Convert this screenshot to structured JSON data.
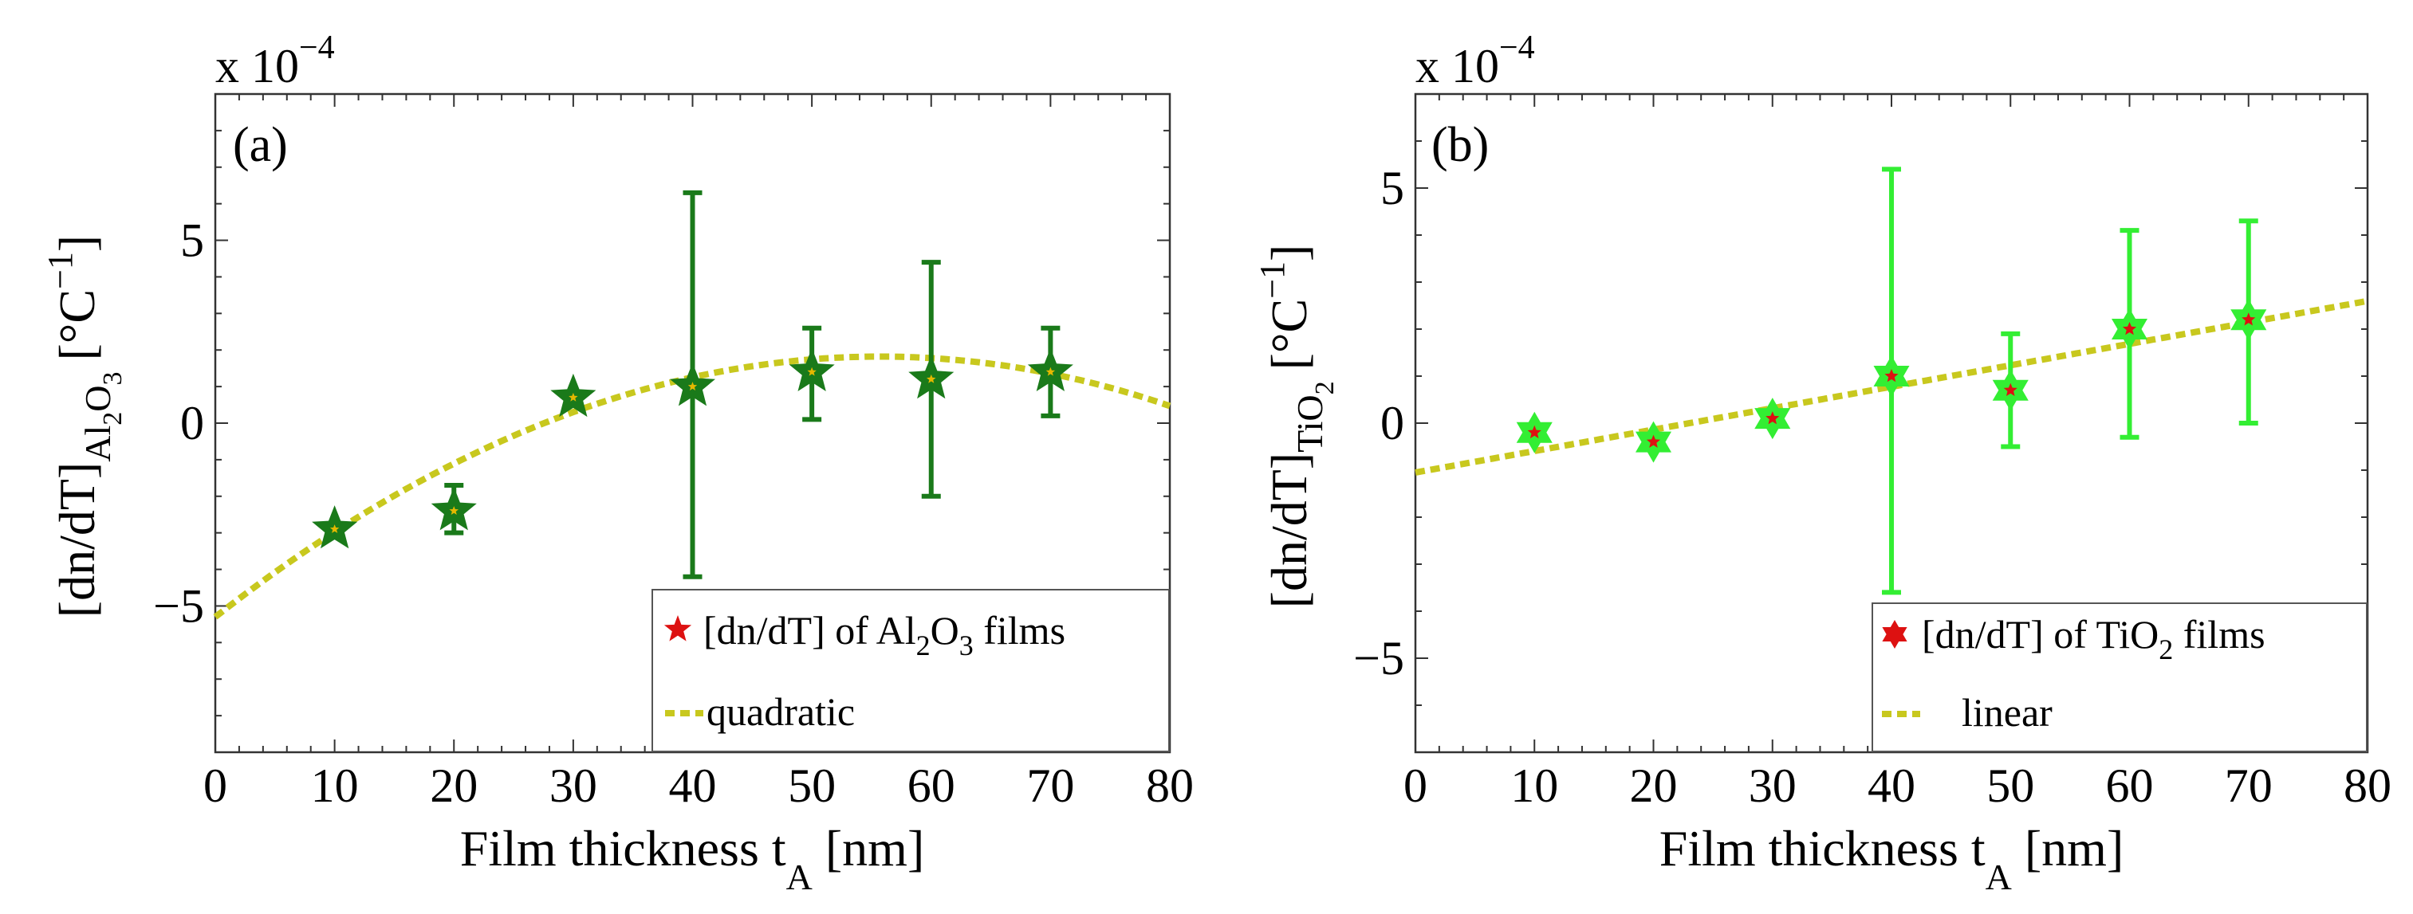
{
  "chart_data": [
    {
      "panel": "(a)",
      "type": "scatter",
      "exponent_label": "x 10",
      "exponent_power": "−4",
      "ylabel": {
        "main": "[dn/dT]",
        "sub1": "Al",
        "sub2": "2",
        "sub3": "O",
        "sub4": "3",
        "unit": "[°C",
        "unit_sup": "−1",
        "unit_close": "]"
      },
      "xlabel": {
        "main": "Film thickness t",
        "sub": "A",
        "unit": " [nm]"
      },
      "xlim": [
        0,
        80
      ],
      "ylim": [
        -9,
        9
      ],
      "xticks": [
        0,
        10,
        20,
        30,
        40,
        50,
        60,
        70,
        80
      ],
      "yticks": [
        -5,
        0,
        5
      ],
      "ytick_labels": [
        "−5",
        "0",
        "5"
      ],
      "marker_color": "#1a7a1a",
      "marker_inner_color": "#e5b800",
      "errorbar_color": "#1a7a1a",
      "fit_color": "#c8c81e",
      "series": [
        {
          "name": "[dn/dT] of Al2O3 films",
          "legend_parts": {
            "pre": "[dn/dT] of Al",
            "s1": "2",
            "mid": "O",
            "s2": "3",
            "post": " films"
          },
          "x": [
            10,
            20,
            30,
            40,
            50,
            60,
            70
          ],
          "y": [
            -2.9,
            -2.4,
            0.7,
            1.0,
            1.4,
            1.2,
            1.4
          ],
          "err_lo": [
            -2.9,
            -3.0,
            0.7,
            -4.2,
            0.1,
            -2.0,
            0.2
          ],
          "err_hi": [
            -2.9,
            -1.7,
            0.7,
            6.3,
            2.6,
            4.4,
            2.6
          ]
        }
      ],
      "fit": {
        "name": "quadratic",
        "model": "quadratic",
        "a": -5.3,
        "b": 0.2555,
        "c": -0.002292
      }
    },
    {
      "panel": "(b)",
      "type": "scatter",
      "exponent_label": "x 10",
      "exponent_power": "−4",
      "ylabel": {
        "main": "[dn/dT]",
        "sub1": "TiO",
        "sub2": "2",
        "unit": "[°C",
        "unit_sup": "−1",
        "unit_close": "]"
      },
      "xlabel": {
        "main": "Film thickness t",
        "sub": "A",
        "unit": " [nm]"
      },
      "xlim": [
        0,
        80
      ],
      "ylim": [
        -7,
        7
      ],
      "xticks": [
        0,
        10,
        20,
        30,
        40,
        50,
        60,
        70,
        80
      ],
      "yticks": [
        -5,
        0,
        5
      ],
      "ytick_labels": [
        "−5",
        "0",
        "5"
      ],
      "marker_color": "#33ee33",
      "marker_inner_color": "#dd1111",
      "errorbar_color": "#33ee33",
      "fit_color": "#c8c81e",
      "series": [
        {
          "name": "[dn/dT] of TiO2 films",
          "legend_parts": {
            "pre": "[dn/dT] of TiO",
            "s1": "2",
            "post": " films"
          },
          "x": [
            10,
            20,
            30,
            40,
            50,
            60,
            70
          ],
          "y": [
            -0.2,
            -0.4,
            0.1,
            1.0,
            0.7,
            2.0,
            2.2
          ],
          "err_lo": [
            -0.2,
            -0.4,
            0.1,
            -3.6,
            -0.5,
            -0.3,
            0.0
          ],
          "err_hi": [
            -0.2,
            -0.4,
            0.1,
            5.4,
            1.9,
            4.1,
            4.3
          ]
        }
      ],
      "fit": {
        "name": "linear",
        "model": "linear",
        "a": -1.05,
        "b": 0.0456
      }
    }
  ]
}
